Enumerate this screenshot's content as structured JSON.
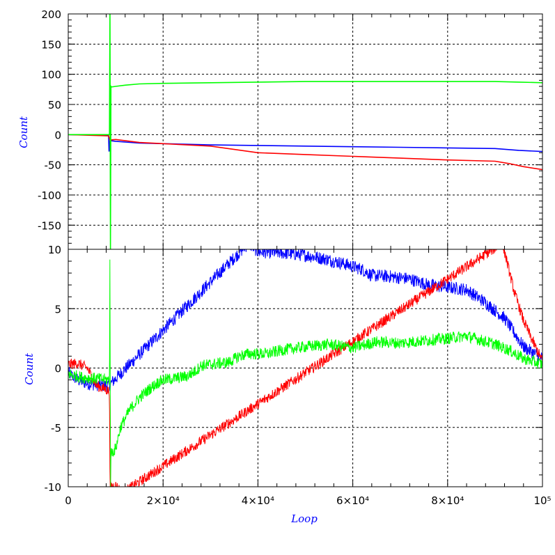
{
  "chart_data": [
    {
      "type": "line",
      "ylabel": "Count",
      "xlim": [
        0,
        100000
      ],
      "ylim": [
        -190,
        200
      ],
      "yticks": [
        {
          "value": 200,
          "label": "200"
        },
        {
          "value": 150,
          "label": "150"
        },
        {
          "value": 100,
          "label": "100"
        },
        {
          "value": 50,
          "label": "50"
        },
        {
          "value": 0,
          "label": "0"
        },
        {
          "value": -50,
          "label": "-50"
        },
        {
          "value": -100,
          "label": "-100"
        },
        {
          "value": -150,
          "label": "-150"
        }
      ],
      "grid": true,
      "series": [
        {
          "color": "#0000ff",
          "x": [
            0,
            8500,
            8600,
            8800,
            10000,
            15000,
            20000,
            30000,
            40000,
            50000,
            60000,
            70000,
            80000,
            90000,
            95000,
            100000
          ],
          "values": [
            0,
            -1,
            -28,
            -10,
            -11,
            -14,
            -15,
            -17,
            -18,
            -19,
            -20,
            -21,
            -22,
            -23,
            -26,
            -28
          ]
        },
        {
          "color": "#ff0000",
          "x": [
            0,
            8500,
            8800,
            10000,
            15000,
            20000,
            30000,
            40000,
            50000,
            60000,
            70000,
            80000,
            90000,
            93000,
            96000,
            100000
          ],
          "values": [
            0,
            -2,
            -9,
            -8,
            -13,
            -15,
            -19,
            -30,
            -33,
            -36,
            -39,
            -42,
            -44,
            -48,
            -53,
            -58
          ]
        },
        {
          "color": "#00ff00",
          "x": [
            0,
            8700,
            8800,
            8900,
            9000,
            9100,
            10000,
            12000,
            15000,
            20000,
            30000,
            40000,
            50000,
            60000,
            70000,
            80000,
            90000,
            95000,
            100000
          ],
          "values": [
            0,
            0,
            200,
            -190,
            80,
            79,
            80,
            82,
            84,
            85,
            86,
            87,
            88,
            88,
            88,
            88,
            88,
            87,
            86
          ]
        }
      ]
    },
    {
      "type": "line",
      "xlabel": "Loop",
      "ylabel": "Count",
      "xlim": [
        0,
        100000
      ],
      "ylim": [
        -10,
        10
      ],
      "xticks": [
        {
          "value": 0,
          "label": "0"
        },
        {
          "value": 20000,
          "label": "2×10⁴"
        },
        {
          "value": 40000,
          "label": "4×10⁴"
        },
        {
          "value": 60000,
          "label": "6×10⁴"
        },
        {
          "value": 80000,
          "label": "8×10⁴"
        },
        {
          "value": 100000,
          "label": "10⁵"
        }
      ],
      "yticks": [
        {
          "value": 10,
          "label": "10"
        },
        {
          "value": 5,
          "label": "5"
        },
        {
          "value": 0,
          "label": "0"
        },
        {
          "value": -5,
          "label": "-5"
        },
        {
          "value": -10,
          "label": "-10"
        }
      ],
      "grid": true,
      "series": [
        {
          "color": "#0000ff",
          "noise": 0.55,
          "x": [
            0,
            2000,
            4000,
            6000,
            8500,
            38000,
            40000,
            45000,
            50000,
            54000,
            58000,
            62000,
            64000,
            68000,
            72000,
            76000,
            80000,
            84000,
            88000,
            92000,
            96000,
            100000
          ],
          "values": [
            -0.4,
            -1.0,
            -1.3,
            -1.4,
            -1.5,
            10.5,
            9.8,
            9.7,
            9.5,
            9.2,
            8.8,
            8.3,
            7.8,
            7.7,
            7.5,
            7.0,
            6.8,
            6.6,
            5.5,
            4.2,
            1.8,
            0.8
          ]
        },
        {
          "color": "#ff0000",
          "noise": 0.45,
          "x": [
            0,
            2000,
            4000,
            6000,
            8000,
            8700,
            8800,
            10000,
            11500,
            91500,
            92000,
            94000,
            96000,
            98000,
            100000
          ],
          "values": [
            0.3,
            0.4,
            0.0,
            -1.5,
            -1.8,
            -2.0,
            -10.0,
            -9.9,
            -10.5,
            10.5,
            9.8,
            6.5,
            4.0,
            2.2,
            0.6
          ]
        },
        {
          "color": "#00ff00",
          "noise": 0.5,
          "x": [
            0,
            3000,
            6000,
            8700,
            8800,
            8900,
            9000,
            10000,
            11000,
            13000,
            15000,
            17000,
            19000,
            20000,
            22000,
            25000,
            27000,
            28000,
            30000,
            34000,
            36000,
            38000,
            42000,
            45000,
            50000,
            55000,
            60000,
            65000,
            70000,
            75000,
            80000,
            84000,
            90000,
            93000,
            96000,
            100000
          ],
          "values": [
            -0.5,
            -0.8,
            -0.9,
            -1.0,
            10.5,
            -10.5,
            -7.2,
            -6.8,
            -5.0,
            -3.5,
            -2.5,
            -1.8,
            -1.2,
            -1.0,
            -0.9,
            -0.7,
            -0.2,
            0.2,
            0.3,
            0.5,
            1.0,
            1.2,
            1.2,
            1.5,
            1.8,
            2.0,
            1.7,
            2.2,
            2.1,
            2.3,
            2.5,
            2.7,
            2.0,
            1.5,
            0.8,
            0.3
          ]
        }
      ]
    }
  ]
}
